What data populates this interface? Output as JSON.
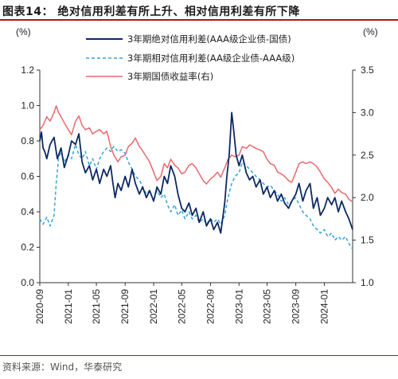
{
  "header": {
    "title": "图表14：  绝对信用利差有所上升、相对信用利差有所下降"
  },
  "footer": {
    "source": "资料来源：Wind，华泰研究"
  },
  "colors": {
    "abs": "#0d2a63",
    "rel": "#35a2da",
    "yield": "#e8696d",
    "accent": "#b4131a"
  },
  "chart_data": {
    "type": "line",
    "title": "",
    "y_left_unit": "(%)",
    "y_right_unit": "(%)",
    "ylim": [
      0.0,
      1.2
    ],
    "y2lim": [
      1.0,
      3.5
    ],
    "yticks": [
      "0.0",
      "0.2",
      "0.4",
      "0.6",
      "0.8",
      "1.0",
      "1.2"
    ],
    "y2ticks": [
      "1.0",
      "1.5",
      "2.0",
      "2.5",
      "3.0",
      "3.5"
    ],
    "x_range": [
      "2020-09",
      "2024-05"
    ],
    "xticks": [
      "2020-09",
      "2021-01",
      "2021-05",
      "2021-09",
      "2022-01",
      "2022-05",
      "2022-09",
      "2023-01",
      "2023-05",
      "2023-09",
      "2024-01"
    ],
    "series": [
      {
        "name": "3年期绝对信用利差(AAA级企业债-国债)",
        "axis": "left",
        "style": "solid",
        "points": [
          [
            "2020-09-01",
            0.8
          ],
          [
            "2020-09-08",
            0.85
          ],
          [
            "2020-09-15",
            0.76
          ],
          [
            "2020-09-22",
            0.74
          ],
          [
            "2020-10-01",
            0.7
          ],
          [
            "2020-10-15",
            0.78
          ],
          [
            "2020-11-01",
            0.82
          ],
          [
            "2020-11-15",
            0.7
          ],
          [
            "2020-12-01",
            0.76
          ],
          [
            "2020-12-15",
            0.65
          ],
          [
            "2021-01-01",
            0.72
          ],
          [
            "2021-01-15",
            0.8
          ],
          [
            "2021-02-01",
            0.78
          ],
          [
            "2021-02-15",
            0.84
          ],
          [
            "2021-03-01",
            0.68
          ],
          [
            "2021-03-15",
            0.62
          ],
          [
            "2021-04-01",
            0.66
          ],
          [
            "2021-04-15",
            0.58
          ],
          [
            "2021-05-01",
            0.64
          ],
          [
            "2021-05-15",
            0.56
          ],
          [
            "2021-06-01",
            0.64
          ],
          [
            "2021-06-15",
            0.6
          ],
          [
            "2021-07-01",
            0.66
          ],
          [
            "2021-07-10",
            0.57
          ],
          [
            "2021-07-20",
            0.48
          ],
          [
            "2021-08-01",
            0.56
          ],
          [
            "2021-08-15",
            0.52
          ],
          [
            "2021-09-01",
            0.6
          ],
          [
            "2021-09-15",
            0.54
          ],
          [
            "2021-10-01",
            0.64
          ],
          [
            "2021-10-15",
            0.56
          ],
          [
            "2021-11-01",
            0.5
          ],
          [
            "2021-11-15",
            0.54
          ],
          [
            "2021-12-01",
            0.48
          ],
          [
            "2021-12-15",
            0.52
          ],
          [
            "2022-01-01",
            0.46
          ],
          [
            "2022-01-15",
            0.54
          ],
          [
            "2022-02-01",
            0.5
          ],
          [
            "2022-02-15",
            0.6
          ],
          [
            "2022-03-01",
            0.56
          ],
          [
            "2022-03-15",
            0.66
          ],
          [
            "2022-04-01",
            0.6
          ],
          [
            "2022-04-15",
            0.5
          ],
          [
            "2022-05-01",
            0.42
          ],
          [
            "2022-05-15",
            0.4
          ],
          [
            "2022-06-01",
            0.45
          ],
          [
            "2022-06-15",
            0.38
          ],
          [
            "2022-07-01",
            0.42
          ],
          [
            "2022-07-15",
            0.34
          ],
          [
            "2022-08-01",
            0.4
          ],
          [
            "2022-08-15",
            0.32
          ],
          [
            "2022-09-01",
            0.36
          ],
          [
            "2022-09-15",
            0.3
          ],
          [
            "2022-10-01",
            0.34
          ],
          [
            "2022-10-15",
            0.28
          ],
          [
            "2022-11-01",
            0.45
          ],
          [
            "2022-11-10",
            0.6
          ],
          [
            "2022-11-20",
            0.72
          ],
          [
            "2022-12-01",
            0.96
          ],
          [
            "2022-12-10",
            0.85
          ],
          [
            "2022-12-20",
            0.72
          ],
          [
            "2023-01-01",
            0.66
          ],
          [
            "2023-01-15",
            0.72
          ],
          [
            "2023-02-01",
            0.62
          ],
          [
            "2023-02-15",
            0.58
          ],
          [
            "2023-03-01",
            0.6
          ],
          [
            "2023-03-15",
            0.54
          ],
          [
            "2023-04-01",
            0.58
          ],
          [
            "2023-04-15",
            0.5
          ],
          [
            "2023-05-01",
            0.54
          ],
          [
            "2023-05-15",
            0.48
          ],
          [
            "2023-06-01",
            0.52
          ],
          [
            "2023-06-15",
            0.46
          ],
          [
            "2023-07-01",
            0.5
          ],
          [
            "2023-07-15",
            0.45
          ],
          [
            "2023-08-01",
            0.42
          ],
          [
            "2023-08-15",
            0.46
          ],
          [
            "2023-09-01",
            0.5
          ],
          [
            "2023-09-15",
            0.56
          ],
          [
            "2023-10-01",
            0.46
          ],
          [
            "2023-10-15",
            0.52
          ],
          [
            "2023-11-01",
            0.56
          ],
          [
            "2023-11-15",
            0.42
          ],
          [
            "2023-12-01",
            0.48
          ],
          [
            "2023-12-15",
            0.38
          ],
          [
            "2024-01-01",
            0.42
          ],
          [
            "2024-01-15",
            0.48
          ],
          [
            "2024-02-01",
            0.44
          ],
          [
            "2024-02-15",
            0.48
          ],
          [
            "2024-03-01",
            0.4
          ],
          [
            "2024-03-15",
            0.46
          ],
          [
            "2024-04-01",
            0.4
          ],
          [
            "2024-04-15",
            0.36
          ],
          [
            "2024-05-01",
            0.3
          ]
        ]
      },
      {
        "name": "3年期相对信用利差(AA级企业债-AAA级)",
        "axis": "left",
        "style": "dashed",
        "points": [
          [
            "2020-09-01",
            0.36
          ],
          [
            "2020-09-15",
            0.33
          ],
          [
            "2020-10-01",
            0.37
          ],
          [
            "2020-10-15",
            0.32
          ],
          [
            "2020-11-01",
            0.38
          ],
          [
            "2020-11-10",
            0.56
          ],
          [
            "2020-11-20",
            0.7
          ],
          [
            "2020-12-01",
            0.74
          ],
          [
            "2020-12-15",
            0.68
          ],
          [
            "2021-01-01",
            0.72
          ],
          [
            "2021-01-15",
            0.7
          ],
          [
            "2021-02-01",
            0.78
          ],
          [
            "2021-02-15",
            0.72
          ],
          [
            "2021-03-01",
            0.7
          ],
          [
            "2021-03-15",
            0.74
          ],
          [
            "2021-04-01",
            0.66
          ],
          [
            "2021-04-15",
            0.7
          ],
          [
            "2021-05-01",
            0.64
          ],
          [
            "2021-05-15",
            0.7
          ],
          [
            "2021-06-01",
            0.74
          ],
          [
            "2021-06-15",
            0.76
          ],
          [
            "2021-07-01",
            0.74
          ],
          [
            "2021-07-15",
            0.77
          ],
          [
            "2021-08-01",
            0.74
          ],
          [
            "2021-08-15",
            0.75
          ],
          [
            "2021-09-01",
            0.73
          ],
          [
            "2021-09-15",
            0.68
          ],
          [
            "2021-10-01",
            0.64
          ],
          [
            "2021-10-15",
            0.6
          ],
          [
            "2021-11-01",
            0.58
          ],
          [
            "2021-11-15",
            0.54
          ],
          [
            "2021-12-01",
            0.5
          ],
          [
            "2021-12-15",
            0.52
          ],
          [
            "2022-01-01",
            0.46
          ],
          [
            "2022-01-15",
            0.52
          ],
          [
            "2022-02-01",
            0.48
          ],
          [
            "2022-02-15",
            0.5
          ],
          [
            "2022-03-01",
            0.44
          ],
          [
            "2022-03-15",
            0.4
          ],
          [
            "2022-04-01",
            0.44
          ],
          [
            "2022-04-15",
            0.38
          ],
          [
            "2022-05-01",
            0.41
          ],
          [
            "2022-05-15",
            0.36
          ],
          [
            "2022-06-01",
            0.4
          ],
          [
            "2022-06-15",
            0.36
          ],
          [
            "2022-07-01",
            0.38
          ],
          [
            "2022-07-15",
            0.34
          ],
          [
            "2022-08-01",
            0.36
          ],
          [
            "2022-08-15",
            0.33
          ],
          [
            "2022-09-01",
            0.36
          ],
          [
            "2022-09-15",
            0.34
          ],
          [
            "2022-10-01",
            0.36
          ],
          [
            "2022-10-15",
            0.33
          ],
          [
            "2022-11-01",
            0.38
          ],
          [
            "2022-11-15",
            0.48
          ],
          [
            "2022-12-01",
            0.56
          ],
          [
            "2022-12-15",
            0.6
          ],
          [
            "2023-01-01",
            0.62
          ],
          [
            "2023-01-15",
            0.68
          ],
          [
            "2023-02-01",
            0.66
          ],
          [
            "2023-02-15",
            0.64
          ],
          [
            "2023-03-01",
            0.62
          ],
          [
            "2023-03-15",
            0.6
          ],
          [
            "2023-04-01",
            0.58
          ],
          [
            "2023-04-15",
            0.56
          ],
          [
            "2023-05-01",
            0.54
          ],
          [
            "2023-05-15",
            0.55
          ],
          [
            "2023-06-01",
            0.52
          ],
          [
            "2023-06-15",
            0.5
          ],
          [
            "2023-07-01",
            0.46
          ],
          [
            "2023-07-15",
            0.48
          ],
          [
            "2023-08-01",
            0.44
          ],
          [
            "2023-08-15",
            0.46
          ],
          [
            "2023-09-01",
            0.48
          ],
          [
            "2023-09-15",
            0.44
          ],
          [
            "2023-10-01",
            0.4
          ],
          [
            "2023-10-15",
            0.38
          ],
          [
            "2023-11-01",
            0.36
          ],
          [
            "2023-11-15",
            0.32
          ],
          [
            "2023-12-01",
            0.3
          ],
          [
            "2023-12-15",
            0.28
          ],
          [
            "2024-01-01",
            0.3
          ],
          [
            "2024-01-15",
            0.26
          ],
          [
            "2024-02-01",
            0.28
          ],
          [
            "2024-02-15",
            0.24
          ],
          [
            "2024-03-01",
            0.26
          ],
          [
            "2024-03-15",
            0.24
          ],
          [
            "2024-04-01",
            0.26
          ],
          [
            "2024-04-15",
            0.22
          ],
          [
            "2024-05-01",
            0.19
          ]
        ]
      },
      {
        "name": "3年期国债收益率(右)",
        "axis": "right",
        "style": "solid",
        "points": [
          [
            "2020-09-01",
            2.8
          ],
          [
            "2020-09-15",
            2.85
          ],
          [
            "2020-10-01",
            2.95
          ],
          [
            "2020-10-15",
            2.9
          ],
          [
            "2020-11-01",
            3.0
          ],
          [
            "2020-11-10",
            3.08
          ],
          [
            "2020-11-20",
            3.0
          ],
          [
            "2020-12-01",
            2.95
          ],
          [
            "2020-12-15",
            2.88
          ],
          [
            "2021-01-01",
            2.8
          ],
          [
            "2021-01-15",
            2.74
          ],
          [
            "2021-02-01",
            2.9
          ],
          [
            "2021-02-15",
            2.96
          ],
          [
            "2021-03-01",
            2.85
          ],
          [
            "2021-03-15",
            2.8
          ],
          [
            "2021-04-01",
            2.82
          ],
          [
            "2021-04-15",
            2.75
          ],
          [
            "2021-05-01",
            2.78
          ],
          [
            "2021-05-15",
            2.8
          ],
          [
            "2021-06-01",
            2.75
          ],
          [
            "2021-06-15",
            2.78
          ],
          [
            "2021-07-01",
            2.6
          ],
          [
            "2021-07-15",
            2.5
          ],
          [
            "2021-08-01",
            2.42
          ],
          [
            "2021-08-15",
            2.48
          ],
          [
            "2021-09-01",
            2.5
          ],
          [
            "2021-09-15",
            2.6
          ],
          [
            "2021-10-01",
            2.64
          ],
          [
            "2021-10-15",
            2.7
          ],
          [
            "2021-11-01",
            2.6
          ],
          [
            "2021-11-15",
            2.55
          ],
          [
            "2021-12-01",
            2.48
          ],
          [
            "2021-12-15",
            2.42
          ],
          [
            "2022-01-01",
            2.3
          ],
          [
            "2022-01-15",
            2.2
          ],
          [
            "2022-02-01",
            2.25
          ],
          [
            "2022-02-15",
            2.4
          ],
          [
            "2022-03-01",
            2.35
          ],
          [
            "2022-03-15",
            2.45
          ],
          [
            "2022-04-01",
            2.38
          ],
          [
            "2022-04-15",
            2.35
          ],
          [
            "2022-05-01",
            2.28
          ],
          [
            "2022-05-15",
            2.3
          ],
          [
            "2022-06-01",
            2.38
          ],
          [
            "2022-06-15",
            2.4
          ],
          [
            "2022-07-01",
            2.35
          ],
          [
            "2022-07-15",
            2.28
          ],
          [
            "2022-08-01",
            2.2
          ],
          [
            "2022-08-15",
            2.16
          ],
          [
            "2022-09-01",
            2.22
          ],
          [
            "2022-09-15",
            2.25
          ],
          [
            "2022-10-01",
            2.3
          ],
          [
            "2022-10-15",
            2.24
          ],
          [
            "2022-11-01",
            2.35
          ],
          [
            "2022-11-15",
            2.45
          ],
          [
            "2022-12-01",
            2.5
          ],
          [
            "2022-12-15",
            2.48
          ],
          [
            "2023-01-01",
            2.5
          ],
          [
            "2023-01-15",
            2.6
          ],
          [
            "2023-02-01",
            2.58
          ],
          [
            "2023-02-15",
            2.62
          ],
          [
            "2023-03-01",
            2.6
          ],
          [
            "2023-03-15",
            2.58
          ],
          [
            "2023-04-01",
            2.56
          ],
          [
            "2023-04-15",
            2.54
          ],
          [
            "2023-05-01",
            2.45
          ],
          [
            "2023-05-15",
            2.4
          ],
          [
            "2023-06-01",
            2.38
          ],
          [
            "2023-06-15",
            2.3
          ],
          [
            "2023-07-01",
            2.28
          ],
          [
            "2023-07-15",
            2.25
          ],
          [
            "2023-08-01",
            2.2
          ],
          [
            "2023-08-15",
            2.18
          ],
          [
            "2023-09-01",
            2.3
          ],
          [
            "2023-09-15",
            2.4
          ],
          [
            "2023-10-01",
            2.42
          ],
          [
            "2023-10-15",
            2.4
          ],
          [
            "2023-11-01",
            2.42
          ],
          [
            "2023-11-15",
            2.4
          ],
          [
            "2023-12-01",
            2.36
          ],
          [
            "2023-12-15",
            2.3
          ],
          [
            "2024-01-01",
            2.22
          ],
          [
            "2024-01-15",
            2.18
          ],
          [
            "2024-02-01",
            2.12
          ],
          [
            "2024-02-15",
            2.05
          ],
          [
            "2024-03-01",
            2.1
          ],
          [
            "2024-03-15",
            2.06
          ],
          [
            "2024-04-01",
            2.04
          ],
          [
            "2024-04-15",
            1.98
          ],
          [
            "2024-05-01",
            1.95
          ]
        ]
      }
    ]
  }
}
